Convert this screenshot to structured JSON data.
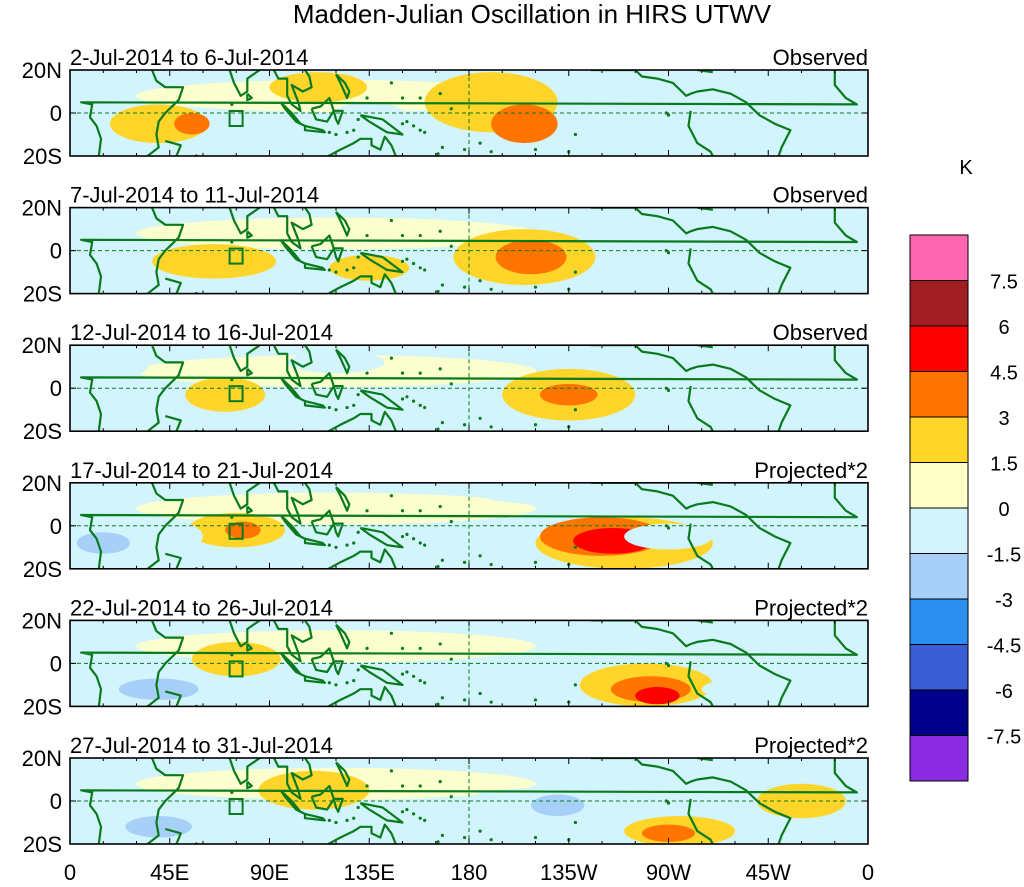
{
  "chart_data": {
    "type": "heatmap",
    "title": "Madden-Julian Oscillation in HIRS UTWV",
    "unit_label": "K",
    "x_tick_labels": [
      "0",
      "45E",
      "90E",
      "135E",
      "180",
      "135W",
      "90W",
      "45W",
      "0"
    ],
    "x_ticks_deg_east": [
      0,
      45,
      90,
      135,
      180,
      225,
      270,
      315,
      360
    ],
    "y_tick_labels": [
      "20N",
      "0",
      "20S"
    ],
    "y_ticks_lat": [
      20,
      0,
      -20
    ],
    "lat_range": [
      -20,
      20
    ],
    "lon_range_deg_east": [
      0,
      360
    ],
    "legend_levels": [
      "7.5",
      "6",
      "4.5",
      "3",
      "1.5",
      "0",
      "-1.5",
      "-3",
      "-4.5",
      "-6",
      "-7.5"
    ],
    "legend_colors": [
      "#ff66b2",
      "#a11e23",
      "#ff0000",
      "#ff7500",
      "#ffd52a",
      "#ffffc8",
      "#d2f4fc",
      "#a6d0f8",
      "#2c8ff0",
      "#3a5ed6",
      "#00008b",
      "#8a2be2"
    ],
    "panels": [
      {
        "date_range": "2-Jul-2014 to 6-Jul-2014",
        "label": "Observed",
        "anomalies": [
          {
            "lon": 190,
            "lat": 5,
            "rlon": 30,
            "rlat": 14,
            "value": 1.5
          },
          {
            "lon": 205,
            "lat": -5,
            "rlon": 15,
            "rlat": 9,
            "value": 3
          },
          {
            "lon": 40,
            "lat": -5,
            "rlon": 22,
            "rlat": 9,
            "value": 1.5
          },
          {
            "lon": 55,
            "lat": -5,
            "rlon": 8,
            "rlat": 5,
            "value": 3
          },
          {
            "lon": 112,
            "lat": 12,
            "rlon": 22,
            "rlat": 7,
            "value": 1.5
          },
          {
            "lon": 135,
            "lat": -3,
            "rlon": 18,
            "rlat": 8,
            "value": -1.5
          },
          {
            "lon": 270,
            "lat": 5,
            "rlon": 28,
            "rlat": 7,
            "value": -1.5
          },
          {
            "lon": 340,
            "lat": 10,
            "rlon": 25,
            "rlat": 8,
            "value": -1.5
          }
        ]
      },
      {
        "date_range": "7-Jul-2014 to 11-Jul-2014",
        "label": "Observed",
        "anomalies": [
          {
            "lon": 205,
            "lat": -3,
            "rlon": 32,
            "rlat": 13,
            "value": 1.5
          },
          {
            "lon": 208,
            "lat": -3,
            "rlon": 16,
            "rlat": 8,
            "value": 3
          },
          {
            "lon": 65,
            "lat": -5,
            "rlon": 28,
            "rlat": 8,
            "value": 1.5
          },
          {
            "lon": 135,
            "lat": -8,
            "rlon": 18,
            "rlat": 6,
            "value": 1.5
          },
          {
            "lon": 15,
            "lat": -5,
            "rlon": 12,
            "rlat": 6,
            "value": -1.5
          },
          {
            "lon": 275,
            "lat": 5,
            "rlon": 25,
            "rlat": 6,
            "value": -1.5
          },
          {
            "lon": 330,
            "lat": -3,
            "rlon": 18,
            "rlat": 8,
            "value": -1.5
          }
        ]
      },
      {
        "date_range": "12-Jul-2014 to 16-Jul-2014",
        "label": "Observed",
        "anomalies": [
          {
            "lon": 225,
            "lat": -3,
            "rlon": 30,
            "rlat": 12,
            "value": 1.5
          },
          {
            "lon": 225,
            "lat": -3,
            "rlon": 13,
            "rlat": 5,
            "value": 3
          },
          {
            "lon": 70,
            "lat": -3,
            "rlon": 18,
            "rlat": 8,
            "value": 1.5
          },
          {
            "lon": 120,
            "lat": 12,
            "rlon": 22,
            "rlat": 5,
            "value": -1.5
          },
          {
            "lon": 20,
            "lat": 10,
            "rlon": 15,
            "rlat": 5,
            "value": -1.5
          },
          {
            "lon": 290,
            "lat": 5,
            "rlon": 25,
            "rlat": 7,
            "value": -1.5
          }
        ]
      },
      {
        "date_range": "17-Jul-2014 to 21-Jul-2014",
        "label": "Projected*2",
        "anomalies": [
          {
            "lon": 250,
            "lat": -8,
            "rlon": 40,
            "rlat": 12,
            "value": 1.5
          },
          {
            "lon": 240,
            "lat": -5,
            "rlon": 28,
            "rlat": 9,
            "value": 3
          },
          {
            "lon": 245,
            "lat": -7,
            "rlon": 18,
            "rlat": 6,
            "value": 4.5
          },
          {
            "lon": 75,
            "lat": -2,
            "rlon": 22,
            "rlat": 8,
            "value": 1.5
          },
          {
            "lon": 78,
            "lat": -2,
            "rlon": 8,
            "rlat": 4,
            "value": 3
          },
          {
            "lon": 30,
            "lat": -5,
            "rlon": 30,
            "rlat": 10,
            "value": -1.5
          },
          {
            "lon": 15,
            "lat": -8,
            "rlon": 12,
            "rlat": 5,
            "value": -3
          },
          {
            "lon": 130,
            "lat": -8,
            "rlon": 25,
            "rlat": 7,
            "value": -1.5
          },
          {
            "lon": 215,
            "lat": 15,
            "rlon": 30,
            "rlat": 5,
            "value": -1.5
          },
          {
            "lon": 270,
            "lat": -5,
            "rlon": 20,
            "rlat": 6,
            "value": -1.5
          }
        ]
      },
      {
        "date_range": "22-Jul-2014 to 26-Jul-2014",
        "label": "Projected*2",
        "anomalies": [
          {
            "lon": 260,
            "lat": -10,
            "rlon": 30,
            "rlat": 10,
            "value": 1.5
          },
          {
            "lon": 262,
            "lat": -12,
            "rlon": 18,
            "rlat": 6,
            "value": 3
          },
          {
            "lon": 265,
            "lat": -15,
            "rlon": 10,
            "rlat": 4,
            "value": 4.5
          },
          {
            "lon": 75,
            "lat": 2,
            "rlon": 20,
            "rlat": 8,
            "value": 1.5
          },
          {
            "lon": 40,
            "lat": -10,
            "rlon": 30,
            "rlat": 8,
            "value": -1.5
          },
          {
            "lon": 40,
            "lat": -12,
            "rlon": 18,
            "rlat": 5,
            "value": -3
          },
          {
            "lon": 140,
            "lat": -12,
            "rlon": 25,
            "rlat": 6,
            "value": -1.5
          },
          {
            "lon": 195,
            "lat": -5,
            "rlon": 25,
            "rlat": 8,
            "value": -1.5
          },
          {
            "lon": 305,
            "lat": -12,
            "rlon": 20,
            "rlat": 5,
            "value": -1.5
          }
        ]
      },
      {
        "date_range": "27-Jul-2014 to 31-Jul-2014",
        "label": "Projected*2",
        "anomalies": [
          {
            "lon": 275,
            "lat": -14,
            "rlon": 25,
            "rlat": 7,
            "value": 1.5
          },
          {
            "lon": 270,
            "lat": -15,
            "rlon": 12,
            "rlat": 4,
            "value": 3
          },
          {
            "lon": 110,
            "lat": 5,
            "rlon": 25,
            "rlat": 9,
            "value": 1.5
          },
          {
            "lon": 40,
            "lat": -10,
            "rlon": 30,
            "rlat": 8,
            "value": -1.5
          },
          {
            "lon": 40,
            "lat": -12,
            "rlon": 15,
            "rlat": 5,
            "value": -3
          },
          {
            "lon": 150,
            "lat": -12,
            "rlon": 30,
            "rlat": 7,
            "value": -1.5
          },
          {
            "lon": 210,
            "lat": -2,
            "rlon": 35,
            "rlat": 8,
            "value": -1.5
          },
          {
            "lon": 220,
            "lat": -2,
            "rlon": 12,
            "rlat": 5,
            "value": -3
          },
          {
            "lon": 330,
            "lat": 0,
            "rlon": 20,
            "rlat": 8,
            "value": 1.5
          }
        ]
      }
    ]
  }
}
